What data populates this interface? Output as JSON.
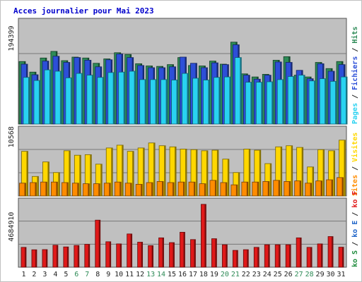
{
  "chart_data": [
    {
      "type": "bar",
      "title": "Acces journalier pour Mai 2023",
      "y_tick_label": "194399",
      "categories": [
        "1",
        "2",
        "3",
        "4",
        "5",
        "6",
        "7",
        "8",
        "9",
        "10",
        "11",
        "12",
        "13",
        "14",
        "15",
        "16",
        "17",
        "18",
        "19",
        "20",
        "21",
        "22",
        "23",
        "24",
        "25",
        "26",
        "27",
        "28",
        "29",
        "30",
        "31"
      ],
      "weekend_days": [
        "6",
        "7",
        "13",
        "14",
        "20",
        "21",
        "27",
        "28"
      ],
      "legend": [
        {
          "label": "Hits",
          "color": "#2e8b57"
        },
        {
          "label": "Fichiers",
          "color": "#2d4fd8"
        },
        {
          "label": "Pages",
          "color": "#29d2f1"
        }
      ],
      "separator": "/",
      "series": [
        {
          "name": "Hits",
          "values": [
            142000,
            118000,
            150000,
            165000,
            144000,
            152000,
            150000,
            138000,
            148000,
            162000,
            158000,
            137000,
            132000,
            131000,
            135000,
            151000,
            133000,
            132000,
            143000,
            136000,
            186000,
            114000,
            107000,
            113000,
            145000,
            153000,
            111000,
            107000,
            140000,
            126000,
            142000
          ]
        },
        {
          "name": "Fichiers",
          "values": [
            136000,
            112000,
            143000,
            154000,
            140000,
            151000,
            145000,
            130000,
            146000,
            159000,
            151000,
            133000,
            128000,
            128000,
            130000,
            152000,
            138000,
            128000,
            139000,
            135000,
            180000,
            111000,
            102000,
            111000,
            141000,
            140000,
            122000,
            103000,
            137000,
            120000,
            135000
          ]
        },
        {
          "name": "Pages",
          "values": [
            106000,
            99000,
            123000,
            120000,
            105000,
            115000,
            111000,
            106000,
            117000,
            118000,
            120000,
            101000,
            101000,
            101000,
            100000,
            115000,
            104000,
            100000,
            106000,
            107000,
            151000,
            95000,
            95000,
            96000,
            101000,
            108000,
            111000,
            98000,
            103000,
            97000,
            107000
          ]
        }
      ],
      "ylim": [
        0,
        240000
      ]
    },
    {
      "type": "bar",
      "y_tick_label": "10568",
      "legend": [
        {
          "label": "Visites",
          "color": "#ffd700"
        },
        {
          "label": "Sites",
          "color": "#ff8c00"
        }
      ],
      "separator": "/",
      "series": [
        {
          "name": "Visites",
          "values": [
            8000,
            3500,
            6100,
            4200,
            8100,
            7300,
            7400,
            5700,
            8600,
            9100,
            8000,
            8600,
            9500,
            9000,
            8800,
            8400,
            8300,
            8100,
            8200,
            6600,
            4200,
            8400,
            8200,
            5800,
            8800,
            9000,
            8700,
            5200,
            8300,
            8100,
            10000
          ]
        },
        {
          "name": "Sites",
          "values": [
            2300,
            2400,
            2500,
            2500,
            2400,
            2300,
            2200,
            2200,
            2300,
            2500,
            2300,
            2100,
            2400,
            2600,
            2400,
            2500,
            2500,
            2200,
            2800,
            2400,
            2000,
            2500,
            2500,
            2600,
            2800,
            2600,
            2700,
            2300,
            2700,
            2900,
            3300
          ]
        }
      ],
      "ylim": [
        0,
        12500
      ]
    },
    {
      "type": "bar",
      "y_tick_label": "4684910",
      "legend": [
        {
          "label": "ko F",
          "color": "#e01919"
        },
        {
          "label": "ko E",
          "color": "#1e64c8"
        },
        {
          "label": "ko S",
          "color": "#1e8b3c"
        }
      ],
      "separator": "/",
      "series": [
        {
          "name": "ko F",
          "values": [
            2300000,
            2020000,
            2040000,
            2550000,
            2350000,
            2520000,
            2650000,
            5450000,
            2950000,
            2700000,
            3850000,
            2900000,
            2500000,
            3400000,
            2850000,
            4050000,
            3200000,
            7280000,
            3300000,
            2600000,
            1950000,
            2030000,
            2300000,
            2600000,
            2600000,
            2600000,
            3400000,
            2300000,
            2700000,
            3550000,
            2320000
          ]
        }
      ],
      "ylim": [
        0,
        8000000
      ]
    }
  ]
}
